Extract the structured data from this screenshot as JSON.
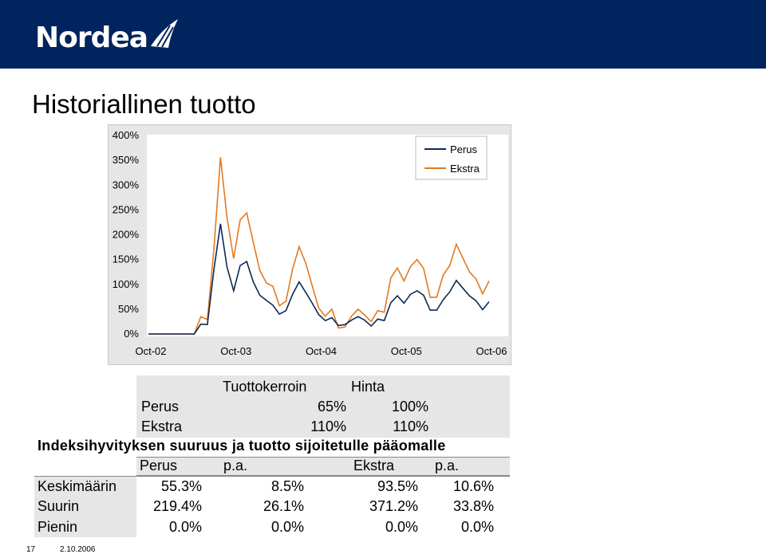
{
  "header": {
    "logo_text": "Nordea",
    "bg_color": "#00245d"
  },
  "slide_title": "Historiallinen tuotto",
  "chart_data": {
    "type": "line",
    "title": "",
    "xlabel": "",
    "ylabel": "",
    "ylim": [
      0,
      400
    ],
    "yticks": [
      "400%",
      "350%",
      "300%",
      "250%",
      "200%",
      "150%",
      "100%",
      "50%",
      "0%"
    ],
    "xticks": [
      "Oct-02",
      "Oct-03",
      "Oct-04",
      "Oct-05",
      "Oct-06"
    ],
    "x_index_range": [
      0,
      48
    ],
    "xtick_index": [
      0,
      12,
      24,
      36,
      48
    ],
    "legend_position": "top-right",
    "grid": false,
    "series": [
      {
        "name": "Perus",
        "color": "#0b2a52",
        "values": [
          0,
          0,
          0,
          0,
          0,
          0,
          0,
          0,
          20,
          19,
          130,
          222,
          135,
          87,
          138,
          146,
          105,
          78,
          68,
          58,
          40,
          47,
          80,
          105,
          84,
          62,
          39,
          27,
          33,
          17,
          19,
          28,
          35,
          28,
          16,
          30,
          27,
          63,
          77,
          62,
          80,
          87,
          78,
          48,
          48,
          69,
          85,
          108,
          92,
          77,
          67,
          49,
          65
        ]
      },
      {
        "name": "Ekstra",
        "color": "#e07b20",
        "values": [
          0,
          0,
          0,
          0,
          0,
          0,
          0,
          0,
          35,
          29,
          171,
          356,
          235,
          152,
          230,
          244,
          185,
          128,
          103,
          96,
          57,
          66,
          131,
          176,
          143,
          97,
          52,
          36,
          50,
          12,
          14,
          36,
          50,
          38,
          25,
          47,
          44,
          113,
          133,
          107,
          136,
          150,
          132,
          74,
          74,
          119,
          138,
          181,
          153,
          125,
          111,
          81,
          107
        ]
      }
    ]
  },
  "table1": {
    "headers": [
      "Tuottokerroin",
      "Hinta"
    ],
    "rows": [
      {
        "label": "Perus",
        "values": [
          "65%",
          "100%"
        ]
      },
      {
        "label": "Ekstra",
        "values": [
          "110%",
          "110%"
        ]
      }
    ]
  },
  "subtitle": "Indeksihyvityksen suuruus ja tuotto sijoitetulle pääomalle",
  "table2": {
    "headers": [
      "Perus",
      "p.a.",
      "Ekstra",
      "p.a."
    ],
    "rows": [
      {
        "label": "Keskimäärin",
        "values": [
          "55.3%",
          "8.5%",
          "93.5%",
          "10.6%"
        ]
      },
      {
        "label": "Suurin",
        "values": [
          "219.4%",
          "26.1%",
          "371.2%",
          "33.8%"
        ]
      },
      {
        "label": "Pienin",
        "values": [
          "0.0%",
          "0.0%",
          "0.0%",
          "0.0%"
        ]
      }
    ]
  },
  "footer": {
    "page_number": "17",
    "date": "2.10.2006"
  }
}
